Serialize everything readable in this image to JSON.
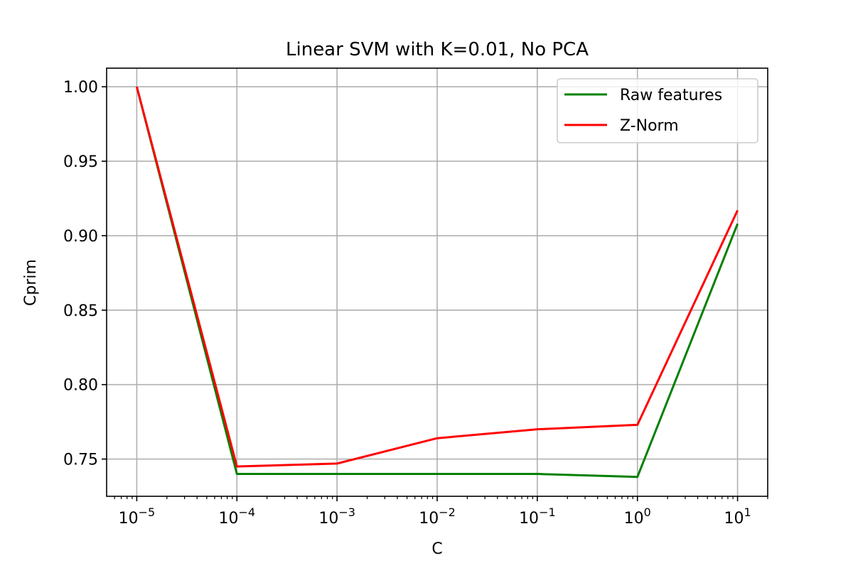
{
  "chart_data": {
    "type": "line",
    "title": "Linear SVM with K=0.01, No PCA",
    "xlabel": "C",
    "ylabel": "Cprim",
    "xscale": "log",
    "xlim": [
      5e-06,
      20
    ],
    "ylim": [
      0.725,
      1.0125
    ],
    "grid": true,
    "legend_position": "top-right",
    "x": [
      1e-05,
      0.0001,
      0.001,
      0.01,
      0.1,
      1,
      10
    ],
    "x_tick_labels": [
      {
        "base": "10",
        "exp": "−5"
      },
      {
        "base": "10",
        "exp": "−4"
      },
      {
        "base": "10",
        "exp": "−3"
      },
      {
        "base": "10",
        "exp": "−2"
      },
      {
        "base": "10",
        "exp": "−1"
      },
      {
        "base": "10",
        "exp": "0"
      },
      {
        "base": "10",
        "exp": "1"
      }
    ],
    "y_ticks": [
      0.75,
      0.8,
      0.85,
      0.9,
      0.95,
      1.0
    ],
    "y_tick_labels": [
      "0.75",
      "0.80",
      "0.85",
      "0.90",
      "0.95",
      "1.00"
    ],
    "series": [
      {
        "name": "Raw features",
        "color": "#008000",
        "values": [
          1.0,
          0.74,
          0.74,
          0.74,
          0.74,
          0.738,
          0.908
        ]
      },
      {
        "name": "Z-Norm",
        "color": "#ff0000",
        "values": [
          1.0,
          0.745,
          0.747,
          0.764,
          0.77,
          0.773,
          0.917
        ]
      }
    ]
  }
}
